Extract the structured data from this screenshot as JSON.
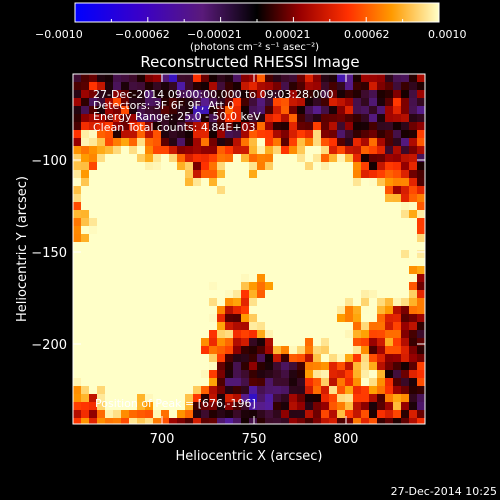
{
  "colorbar": {
    "ticks": [
      "−0.0010",
      "−0.00062",
      "−0.00021",
      "0.00021",
      "0.00062",
      "0.0010"
    ],
    "units": "(photons cm⁻² s⁻¹ asec⁻²)"
  },
  "title": "Reconstructed RHESSI Image",
  "annotations": {
    "time_range": "27-Dec-2014 09:00:00.000 to 09:03:28.000",
    "detectors": "Detectors: 3F 6F 9F, Att 0",
    "energy": "Energy Range: 25.0 - 50.0 keV",
    "method": "Clean     Total counts: 4.84E+03",
    "peak": "Position of Peak = [676,-196]"
  },
  "axes": {
    "xlabel": "Heliocentric X (arcsec)",
    "ylabel": "Heliocentric Y (arcsec)",
    "xticks": [
      "700",
      "750",
      "800"
    ],
    "yticks": [
      "−100",
      "−150",
      "−200"
    ]
  },
  "timestamp": "27-Dec-2014 10:25"
}
